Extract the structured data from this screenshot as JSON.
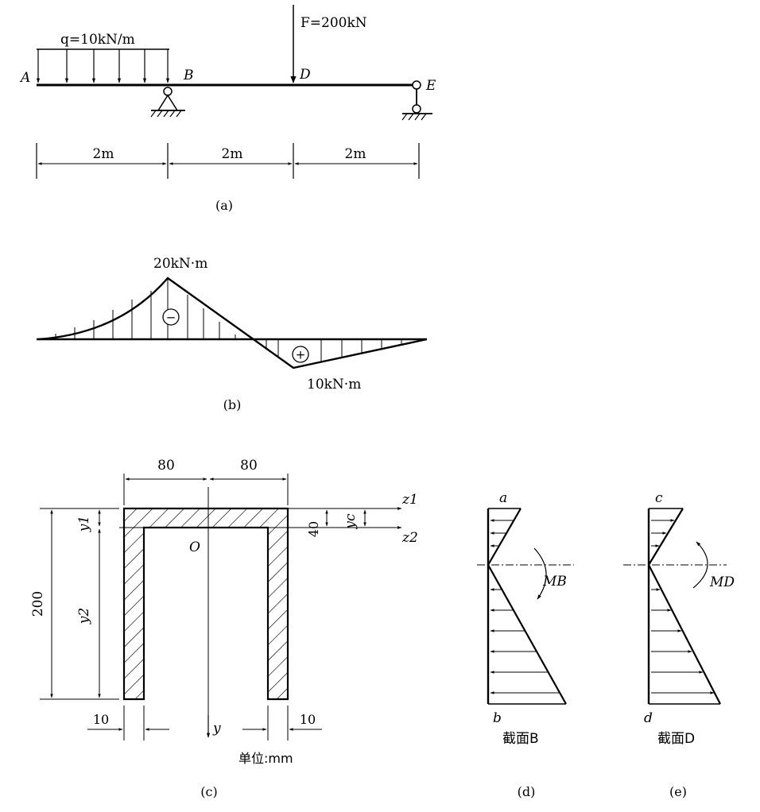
{
  "a": {
    "q_label": "q=10kN/m",
    "F_label": "F=200kN",
    "points": {
      "A": "A",
      "B": "B",
      "D": "D",
      "E": "E"
    },
    "spans": [
      "2m",
      "2m",
      "2m"
    ],
    "caption": "(a)"
  },
  "b": {
    "neg_label": "20kN·m",
    "pos_label": "10kN·m",
    "neg_sign": "−",
    "pos_sign": "+",
    "caption": "(b)"
  },
  "c": {
    "dim_left": "80",
    "dim_right": "80",
    "dim_height": "200",
    "dim_flange": "40",
    "dim_web_left": "10",
    "dim_web_right": "10",
    "y1": "y1",
    "y2": "y2",
    "yc": "yc",
    "z1": "z1",
    "z2": "z2",
    "O": "O",
    "y_axis": "y",
    "unit": "单位:mm",
    "caption": "(c)"
  },
  "d": {
    "top": "a",
    "bottom": "b",
    "moment": "MB",
    "section": "截面B",
    "caption": "(d)"
  },
  "e": {
    "top": "c",
    "bottom": "d",
    "moment": "MD",
    "section": "截面D",
    "caption": "(e)"
  }
}
